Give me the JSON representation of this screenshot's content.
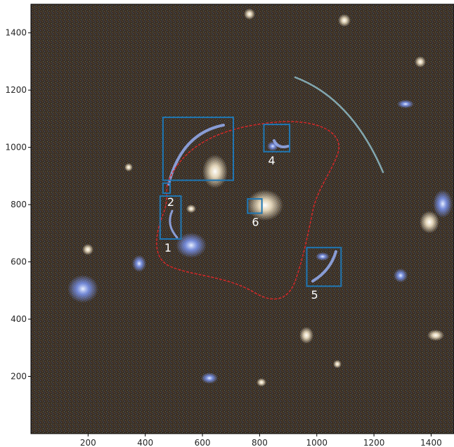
{
  "image": {
    "description_colors": {
      "background": "#3a3024",
      "frame": "#000000",
      "box_stroke": "#1f77b4",
      "critical_curve": "#d62728",
      "label_text": "#ffffff"
    }
  },
  "axes": {
    "x_ticks": [
      "200",
      "400",
      "600",
      "800",
      "1000",
      "1200",
      "1400"
    ],
    "y_ticks": [
      "200",
      "400",
      "600",
      "800",
      "1000",
      "1200",
      "1400"
    ],
    "x_range": [
      0,
      1480
    ],
    "y_range": [
      0,
      1500
    ]
  },
  "regions": [
    {
      "label": "1",
      "x": [
        452,
        525
      ],
      "y": [
        680,
        830
      ]
    },
    {
      "label": "2",
      "x": [
        462,
        487
      ],
      "y": [
        840,
        875
      ]
    },
    {
      "label": "4",
      "x": [
        815,
        905
      ],
      "y": [
        985,
        1080
      ]
    },
    {
      "label": "5",
      "x": [
        965,
        1085
      ],
      "y": [
        515,
        650
      ]
    },
    {
      "label": "6",
      "x": [
        758,
        808
      ],
      "y": [
        770,
        820
      ]
    },
    {
      "label": "",
      "x": [
        462,
        708
      ],
      "y": [
        885,
        1105
      ]
    }
  ],
  "region_label_text": [
    "1",
    "2",
    "4",
    "5",
    "6"
  ]
}
